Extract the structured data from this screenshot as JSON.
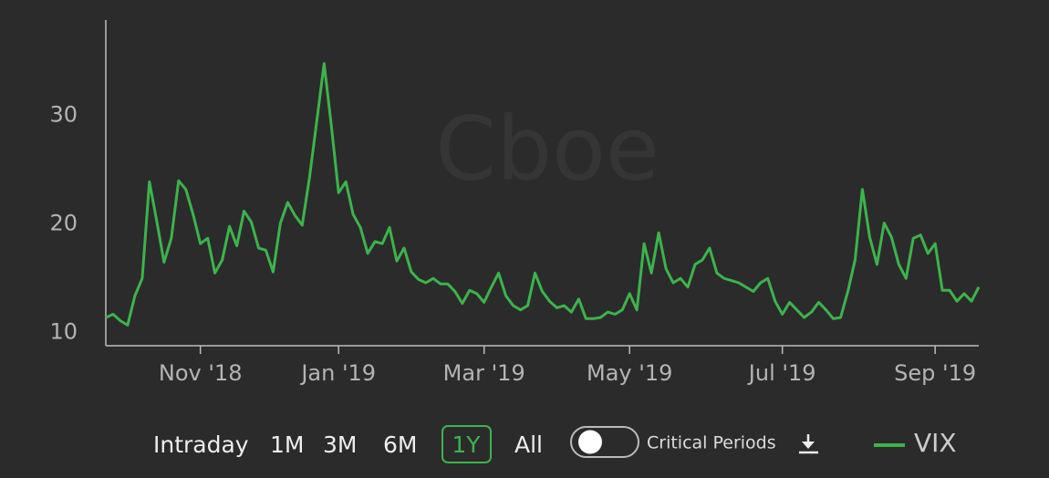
{
  "chart_data": {
    "type": "line",
    "watermark": "Cboe",
    "categories": [
      null,
      null,
      null,
      null,
      null,
      null,
      null,
      null,
      null,
      null,
      null,
      null,
      null,
      "Nov '18",
      null,
      null,
      null,
      null,
      null,
      null,
      null,
      null,
      null,
      null,
      null,
      null,
      null,
      null,
      null,
      null,
      null,
      null,
      "Jan '19",
      null,
      null,
      null,
      null,
      null,
      null,
      null,
      null,
      null,
      null,
      null,
      null,
      null,
      null,
      null,
      null,
      null,
      null,
      null,
      "Mar '19",
      null,
      null,
      null,
      null,
      null,
      null,
      null,
      null,
      null,
      null,
      null,
      null,
      null,
      null,
      null,
      null,
      null,
      null,
      null,
      "May '19",
      null,
      null,
      null,
      null,
      null,
      null,
      null,
      null,
      null,
      null,
      null,
      null,
      null,
      null,
      null,
      null,
      null,
      null,
      null,
      null,
      "Jul '19",
      null,
      null,
      null,
      null,
      null,
      null,
      null,
      null,
      null,
      null,
      null,
      null,
      null,
      null,
      null,
      null,
      null,
      null,
      null,
      null,
      "Sep '19",
      null,
      null,
      null,
      null,
      null,
      null
    ],
    "series": [
      {
        "name": "VIX",
        "color": "#3cb44b",
        "values": [
          11.4,
          11.7,
          11.1,
          10.7,
          13.4,
          15.0,
          23.9,
          20.3,
          16.5,
          18.7,
          24.0,
          23.2,
          20.9,
          18.2,
          18.7,
          15.5,
          16.7,
          19.8,
          18.0,
          21.2,
          20.2,
          17.8,
          17.6,
          15.6,
          20.1,
          22.0,
          20.8,
          19.9,
          24.3,
          29.5,
          34.8,
          29.1,
          22.9,
          23.9,
          20.9,
          19.7,
          17.3,
          18.4,
          18.2,
          19.7,
          16.6,
          17.8,
          15.6,
          14.9,
          14.6,
          15.0,
          14.5,
          14.5,
          13.8,
          12.7,
          13.9,
          13.6,
          12.8,
          14.2,
          15.5,
          13.4,
          12.5,
          12.1,
          12.5,
          15.5,
          13.8,
          12.9,
          12.3,
          12.5,
          11.9,
          13.1,
          11.3,
          11.3,
          11.4,
          11.9,
          11.7,
          12.1,
          13.6,
          12.1,
          18.2,
          15.5,
          19.2,
          15.9,
          14.6,
          15.0,
          14.2,
          16.3,
          16.7,
          17.8,
          15.5,
          15.0,
          14.8,
          14.6,
          14.2,
          13.8,
          14.6,
          15.0,
          12.9,
          11.7,
          12.8,
          12.1,
          11.4,
          11.9,
          12.8,
          12.1,
          11.3,
          11.4,
          13.8,
          16.7,
          23.2,
          18.8,
          16.3,
          20.1,
          18.8,
          16.3,
          15.0,
          18.7,
          19.0,
          17.3,
          18.2,
          13.9,
          13.9,
          12.9,
          13.6,
          12.9,
          14.2
        ]
      }
    ],
    "ylim": [
      8.8,
      38.8
    ],
    "yticks": [
      10,
      20,
      30
    ],
    "grid": false
  },
  "controls": {
    "ranges": [
      {
        "label": "Intraday",
        "selected": false
      },
      {
        "label": "1M",
        "selected": false
      },
      {
        "label": "3M",
        "selected": false
      },
      {
        "label": "6M",
        "selected": false
      },
      {
        "label": "1Y",
        "selected": true
      },
      {
        "label": "All",
        "selected": false
      }
    ],
    "toggle_label": "Critical Periods"
  }
}
